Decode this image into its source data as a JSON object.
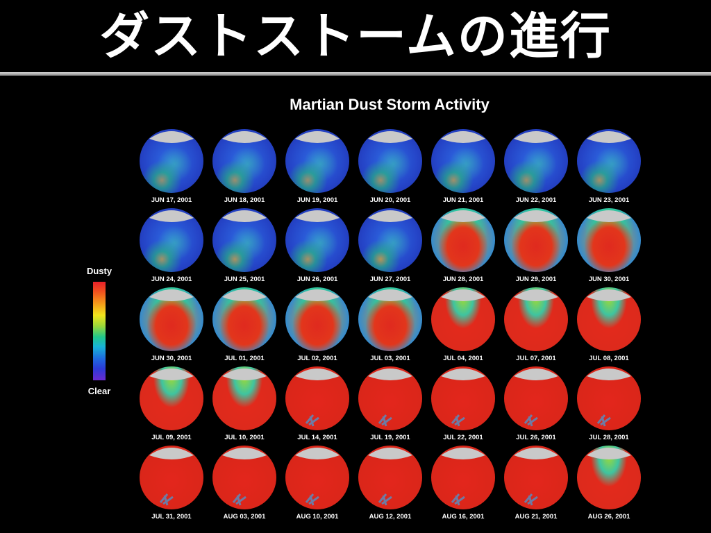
{
  "slide_title": "ダストストームの進行",
  "chart_title": "Martian Dust Storm Activity",
  "legend": {
    "top_label": "Dusty",
    "bottom_label": "Clear"
  },
  "panels": [
    {
      "date": "JUN 17, 2001",
      "dust": 0.05
    },
    {
      "date": "JUN 18, 2001",
      "dust": 0.07
    },
    {
      "date": "JUN 19, 2001",
      "dust": 0.06
    },
    {
      "date": "JUN 20, 2001",
      "dust": 0.08
    },
    {
      "date": "JUN 21, 2001",
      "dust": 0.1
    },
    {
      "date": "JUN 22, 2001",
      "dust": 0.09
    },
    {
      "date": "JUN 23, 2001",
      "dust": 0.11
    },
    {
      "date": "JUN 24, 2001",
      "dust": 0.12
    },
    {
      "date": "JUN 25, 2001",
      "dust": 0.15
    },
    {
      "date": "JUN 26, 2001",
      "dust": 0.13
    },
    {
      "date": "JUN 27, 2001",
      "dust": 0.2
    },
    {
      "date": "JUN 28, 2001",
      "dust": 0.38
    },
    {
      "date": "JUN 29, 2001",
      "dust": 0.45
    },
    {
      "date": "JUN 30, 2001",
      "dust": 0.55
    },
    {
      "date": "JUN 30, 2001",
      "dust": 0.6
    },
    {
      "date": "JUL 01, 2001",
      "dust": 0.55
    },
    {
      "date": "JUL 02, 2001",
      "dust": 0.62
    },
    {
      "date": "JUL 03, 2001",
      "dust": 0.55
    },
    {
      "date": "JUL 04, 2001",
      "dust": 0.7
    },
    {
      "date": "JUL 07, 2001",
      "dust": 0.74
    },
    {
      "date": "JUL 08, 2001",
      "dust": 0.76
    },
    {
      "date": "JUL 09, 2001",
      "dust": 0.8
    },
    {
      "date": "JUL 10, 2001",
      "dust": 0.82
    },
    {
      "date": "JUL 14, 2001",
      "dust": 0.9
    },
    {
      "date": "JUL 19, 2001",
      "dust": 0.94
    },
    {
      "date": "JUL 22, 2001",
      "dust": 0.93
    },
    {
      "date": "JUL 26, 2001",
      "dust": 0.95
    },
    {
      "date": "JUL 28, 2001",
      "dust": 0.97
    },
    {
      "date": "JUL 31, 2001",
      "dust": 0.96
    },
    {
      "date": "AUG 03, 2001",
      "dust": 0.95
    },
    {
      "date": "AUG 10, 2001",
      "dust": 0.96
    },
    {
      "date": "AUG 12, 2001",
      "dust": 0.96
    },
    {
      "date": "AUG 16, 2001",
      "dust": 0.98
    },
    {
      "date": "AUG 21, 2001",
      "dust": 0.98
    },
    {
      "date": "AUG 26, 2001",
      "dust": 0.82
    }
  ]
}
